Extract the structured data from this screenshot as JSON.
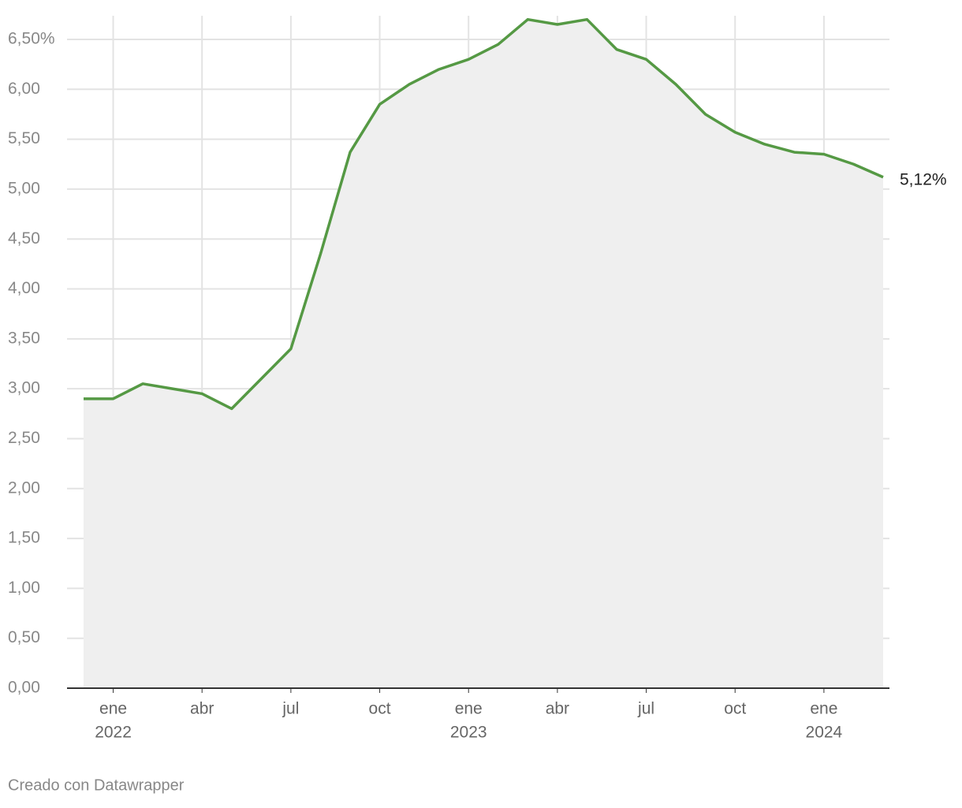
{
  "chart_data": {
    "type": "line",
    "x": [
      "2021-12",
      "2022-01",
      "2022-02",
      "2022-03",
      "2022-04",
      "2022-05",
      "2022-06",
      "2022-07",
      "2022-08",
      "2022-09",
      "2022-10",
      "2022-11",
      "2022-12",
      "2023-01",
      "2023-02",
      "2023-03",
      "2023-04",
      "2023-05",
      "2023-06",
      "2023-07",
      "2023-08",
      "2023-09",
      "2023-10",
      "2023-11",
      "2023-12",
      "2024-01",
      "2024-02",
      "2024-03"
    ],
    "series": [
      {
        "color": "#559944",
        "values": [
          2.9,
          2.9,
          3.05,
          3.0,
          2.95,
          2.8,
          3.1,
          3.4,
          4.35,
          5.37,
          5.85,
          6.05,
          6.2,
          6.3,
          6.45,
          6.7,
          6.65,
          6.7,
          6.4,
          6.3,
          6.05,
          5.75,
          5.57,
          5.45,
          5.37,
          5.35,
          5.25,
          5.12
        ],
        "value_labels": [
          null,
          null,
          null,
          null,
          null,
          null,
          null,
          null,
          null,
          null,
          null,
          null,
          null,
          null,
          null,
          null,
          null,
          null,
          null,
          null,
          null,
          null,
          null,
          null,
          null,
          null,
          null,
          "5,12%"
        ]
      }
    ],
    "area": true,
    "area_color": "#efefef",
    "xlim": [
      "2021-12",
      "2024-03"
    ],
    "xticks": [
      {
        "value": "2022-01",
        "label": "ene",
        "sublabel": "2022"
      },
      {
        "value": "2022-04",
        "label": "abr"
      },
      {
        "value": "2022-07",
        "label": "jul"
      },
      {
        "value": "2022-10",
        "label": "oct"
      },
      {
        "value": "2023-01",
        "label": "ene",
        "sublabel": "2023"
      },
      {
        "value": "2023-04",
        "label": "abr"
      },
      {
        "value": "2023-07",
        "label": "jul"
      },
      {
        "value": "2023-10",
        "label": "oct"
      },
      {
        "value": "2024-01",
        "label": "ene",
        "sublabel": "2024"
      }
    ],
    "ylim": [
      0,
      6.5
    ],
    "yticks": [
      {
        "value": 0,
        "label": "0,00"
      },
      {
        "value": 0.5,
        "label": "0,50"
      },
      {
        "value": 1,
        "label": "1,00"
      },
      {
        "value": 1.5,
        "label": "1,50"
      },
      {
        "value": 2,
        "label": "2,00"
      },
      {
        "value": 2.5,
        "label": "2,50"
      },
      {
        "value": 3,
        "label": "3,00"
      },
      {
        "value": 3.5,
        "label": "3,50"
      },
      {
        "value": 4,
        "label": "4,00"
      },
      {
        "value": 4.5,
        "label": "4,50"
      },
      {
        "value": 5,
        "label": "5,00"
      },
      {
        "value": 5.5,
        "label": "5,50"
      },
      {
        "value": 6,
        "label": "6,00"
      },
      {
        "value": 6.5,
        "label": "6,50%"
      }
    ],
    "grid": true,
    "footer": "Creado con Datawrapper"
  }
}
